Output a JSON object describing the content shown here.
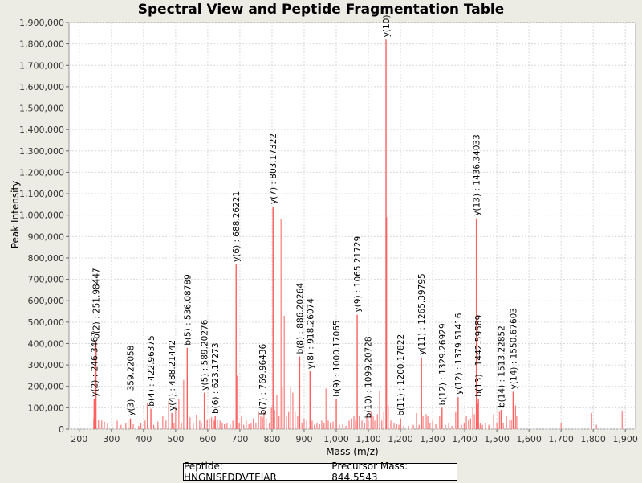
{
  "chart_data": {
    "type": "bar",
    "title": "Spectral View and Peptide Fragmentation Table",
    "xlabel": "Mass (m/z)",
    "ylabel": "Peak Intensity",
    "xlim": [
      168,
      1932
    ],
    "ylim": [
      0,
      1900000
    ],
    "xticks": [
      200,
      300,
      400,
      500,
      600,
      700,
      800,
      900,
      1000,
      1100,
      1200,
      1300,
      1400,
      1500,
      1600,
      1700,
      1800,
      1900
    ],
    "xtick_labels": [
      "200",
      "300",
      "400",
      "500",
      "600",
      "700",
      "800",
      "900",
      "1,000",
      "1,100",
      "1,200",
      "1,300",
      "1,400",
      "1,500",
      "1,600",
      "1,700",
      "1,800",
      "1,900"
    ],
    "yticks": [
      0,
      100000,
      200000,
      300000,
      400000,
      500000,
      600000,
      700000,
      800000,
      900000,
      1000000,
      1100000,
      1200000,
      1300000,
      1400000,
      1500000,
      1600000,
      1700000,
      1800000,
      1900000
    ],
    "ytick_labels": [
      "0",
      "100,000",
      "200,000",
      "300,000",
      "400,000",
      "500,000",
      "600,000",
      "700,000",
      "800,000",
      "900,000",
      "1,000,000",
      "1,100,000",
      "1,200,000",
      "1,300,000",
      "1,400,000",
      "1,500,000",
      "1,600,000",
      "1,700,000",
      "1,800,000",
      "1,900,000"
    ],
    "peak_color": "#ff5f5f",
    "grid_color": "#d9d9d9",
    "annotated_peaks": [
      {
        "mz": 246.3,
        "intensity": 140000,
        "label": "y(2) : 246.3467"
      },
      {
        "mz": 252.0,
        "intensity": 410000,
        "label": "b(2) : 251.98447"
      },
      {
        "mz": 359.2,
        "intensity": 50000,
        "label": "y(3) : 359.22058"
      },
      {
        "mz": 423.0,
        "intensity": 95000,
        "label": "b(4) : 422.96375"
      },
      {
        "mz": 488.2,
        "intensity": 75000,
        "label": "y(4) : 488.21442"
      },
      {
        "mz": 536.1,
        "intensity": 380000,
        "label": "b(5) : 536.08789"
      },
      {
        "mz": 589.2,
        "intensity": 170000,
        "label": "y(5) : 589.20276"
      },
      {
        "mz": 623.2,
        "intensity": 60000,
        "label": "b(6) : 623.17273"
      },
      {
        "mz": 688.3,
        "intensity": 770000,
        "label": "y(6) : 688.26221"
      },
      {
        "mz": 770.0,
        "intensity": 55000,
        "label": "b(7) : 769.96436"
      },
      {
        "mz": 803.2,
        "intensity": 1040000,
        "label": "y(7) : 803.17322"
      },
      {
        "mz": 886.2,
        "intensity": 340000,
        "label": "b(8) : 886.20264"
      },
      {
        "mz": 918.3,
        "intensity": 270000,
        "label": "y(8) : 918.26074"
      },
      {
        "mz": 1000.2,
        "intensity": 140000,
        "label": "b(9) : 1000.17065"
      },
      {
        "mz": 1065.2,
        "intensity": 535000,
        "label": "y(9) : 1065.21729"
      },
      {
        "mz": 1099.2,
        "intensity": 40000,
        "label": "b(10) : 1099.20728"
      },
      {
        "mz": 1155.0,
        "intensity": 1820000,
        "label": "y(10)"
      },
      {
        "mz": 1200.2,
        "intensity": 50000,
        "label": "b(11) : 1200.17822"
      },
      {
        "mz": 1265.4,
        "intensity": 335000,
        "label": "y(11) : 1265.39795"
      },
      {
        "mz": 1329.3,
        "intensity": 100000,
        "label": "b(12) : 1329.26929"
      },
      {
        "mz": 1379.5,
        "intensity": 150000,
        "label": "y(12) : 1379.51416"
      },
      {
        "mz": 1436.3,
        "intensity": 985000,
        "label": "y(13) : 1436.34033"
      },
      {
        "mz": 1442.6,
        "intensity": 140000,
        "label": "b(13) : 1442.59589"
      },
      {
        "mz": 1513.2,
        "intensity": 90000,
        "label": "b(14) : 1513.22852"
      },
      {
        "mz": 1550.7,
        "intensity": 175000,
        "label": "y(14) : 1550.67603"
      }
    ],
    "unlabeled_peaks": [
      [
        245,
        50000
      ],
      [
        260,
        45000
      ],
      [
        270,
        40000
      ],
      [
        278,
        35000
      ],
      [
        288,
        30000
      ],
      [
        302,
        25000
      ],
      [
        318,
        40000
      ],
      [
        330,
        20000
      ],
      [
        345,
        30000
      ],
      [
        352,
        45000
      ],
      [
        368,
        25000
      ],
      [
        385,
        15000
      ],
      [
        392,
        30000
      ],
      [
        405,
        40000
      ],
      [
        412,
        120000
      ],
      [
        432,
        20000
      ],
      [
        445,
        35000
      ],
      [
        460,
        60000
      ],
      [
        470,
        40000
      ],
      [
        478,
        130000
      ],
      [
        495,
        30000
      ],
      [
        500,
        100000
      ],
      [
        510,
        140000
      ],
      [
        518,
        30000
      ],
      [
        525,
        230000
      ],
      [
        545,
        55000
      ],
      [
        555,
        30000
      ],
      [
        565,
        65000
      ],
      [
        575,
        40000
      ],
      [
        580,
        30000
      ],
      [
        598,
        45000
      ],
      [
        605,
        50000
      ],
      [
        612,
        55000
      ],
      [
        620,
        40000
      ],
      [
        630,
        45000
      ],
      [
        638,
        40000
      ],
      [
        645,
        30000
      ],
      [
        652,
        25000
      ],
      [
        660,
        30000
      ],
      [
        670,
        20000
      ],
      [
        678,
        40000
      ],
      [
        692,
        250000
      ],
      [
        698,
        30000
      ],
      [
        705,
        60000
      ],
      [
        712,
        20000
      ],
      [
        720,
        40000
      ],
      [
        728,
        25000
      ],
      [
        735,
        30000
      ],
      [
        742,
        50000
      ],
      [
        750,
        30000
      ],
      [
        758,
        80000
      ],
      [
        765,
        60000
      ],
      [
        775,
        80000
      ],
      [
        782,
        50000
      ],
      [
        792,
        30000
      ],
      [
        798,
        100000
      ],
      [
        808,
        90000
      ],
      [
        815,
        160000
      ],
      [
        822,
        60000
      ],
      [
        828,
        980000
      ],
      [
        832,
        200000
      ],
      [
        838,
        530000
      ],
      [
        845,
        60000
      ],
      [
        852,
        80000
      ],
      [
        858,
        200000
      ],
      [
        865,
        170000
      ],
      [
        872,
        80000
      ],
      [
        880,
        60000
      ],
      [
        893,
        30000
      ],
      [
        900,
        50000
      ],
      [
        908,
        45000
      ],
      [
        925,
        40000
      ],
      [
        932,
        20000
      ],
      [
        940,
        30000
      ],
      [
        948,
        25000
      ],
      [
        955,
        40000
      ],
      [
        962,
        30000
      ],
      [
        968,
        190000
      ],
      [
        975,
        40000
      ],
      [
        982,
        30000
      ],
      [
        990,
        35000
      ],
      [
        1010,
        20000
      ],
      [
        1020,
        25000
      ],
      [
        1030,
        15000
      ],
      [
        1040,
        40000
      ],
      [
        1048,
        50000
      ],
      [
        1055,
        60000
      ],
      [
        1060,
        40000
      ],
      [
        1072,
        60000
      ],
      [
        1080,
        40000
      ],
      [
        1088,
        30000
      ],
      [
        1095,
        60000
      ],
      [
        1108,
        80000
      ],
      [
        1115,
        60000
      ],
      [
        1120,
        40000
      ],
      [
        1128,
        70000
      ],
      [
        1135,
        180000
      ],
      [
        1142,
        40000
      ],
      [
        1148,
        80000
      ],
      [
        1157,
        990000
      ],
      [
        1162,
        110000
      ],
      [
        1170,
        40000
      ],
      [
        1180,
        30000
      ],
      [
        1188,
        25000
      ],
      [
        1195,
        20000
      ],
      [
        1210,
        15000
      ],
      [
        1225,
        15000
      ],
      [
        1240,
        20000
      ],
      [
        1250,
        75000
      ],
      [
        1258,
        20000
      ],
      [
        1270,
        60000
      ],
      [
        1280,
        70000
      ],
      [
        1285,
        60000
      ],
      [
        1292,
        30000
      ],
      [
        1300,
        40000
      ],
      [
        1310,
        25000
      ],
      [
        1322,
        60000
      ],
      [
        1340,
        20000
      ],
      [
        1350,
        30000
      ],
      [
        1360,
        15000
      ],
      [
        1372,
        80000
      ],
      [
        1390,
        20000
      ],
      [
        1398,
        30000
      ],
      [
        1405,
        60000
      ],
      [
        1412,
        40000
      ],
      [
        1418,
        50000
      ],
      [
        1425,
        100000
      ],
      [
        1430,
        70000
      ],
      [
        1440,
        120000
      ],
      [
        1448,
        30000
      ],
      [
        1455,
        20000
      ],
      [
        1465,
        30000
      ],
      [
        1475,
        20000
      ],
      [
        1490,
        70000
      ],
      [
        1500,
        30000
      ],
      [
        1508,
        80000
      ],
      [
        1520,
        30000
      ],
      [
        1530,
        60000
      ],
      [
        1540,
        40000
      ],
      [
        1545,
        45000
      ],
      [
        1558,
        110000
      ],
      [
        1562,
        60000
      ],
      [
        1700,
        30000
      ],
      [
        1795,
        75000
      ],
      [
        1810,
        20000
      ],
      [
        1890,
        85000
      ]
    ]
  },
  "info": {
    "peptide": "Peptide: HNGNISFDDVTEIAR",
    "precursor": "Precursor Mass: 844.5543"
  }
}
